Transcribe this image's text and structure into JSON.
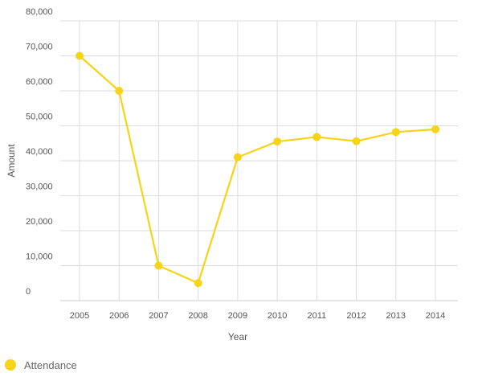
{
  "chart_data": {
    "type": "line",
    "title": "",
    "xlabel": "Year",
    "ylabel": "Amount",
    "categories": [
      "2005",
      "2006",
      "2007",
      "2008",
      "2009",
      "2010",
      "2011",
      "2012",
      "2013",
      "2014"
    ],
    "y_ticks": [
      "0",
      "10,000",
      "20,000",
      "30,000",
      "40,000",
      "50,000",
      "60,000",
      "70,000",
      "80,000"
    ],
    "ylim": [
      0,
      80000
    ],
    "grid": true,
    "legend_position": "bottom-left",
    "series": [
      {
        "name": "Attendance",
        "color": "#f7d417",
        "values": [
          70000,
          60000,
          10000,
          5000,
          41000,
          45500,
          46800,
          45600,
          48200,
          49000
        ]
      }
    ]
  }
}
